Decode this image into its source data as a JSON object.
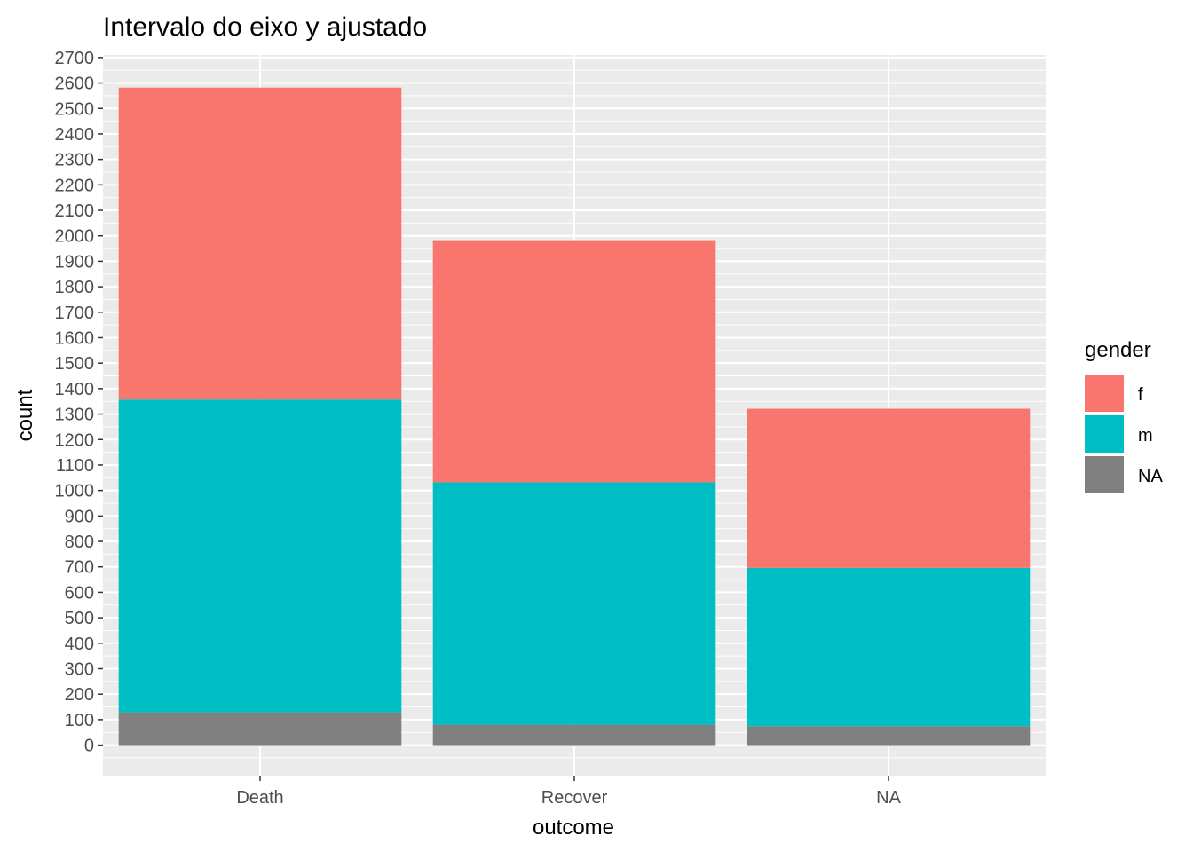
{
  "chart_data": {
    "type": "bar",
    "stacked": true,
    "title": "Intervalo do eixo y ajustado",
    "xlabel": "outcome",
    "ylabel": "count",
    "categories": [
      "Death",
      "Recover",
      "NA"
    ],
    "series": [
      {
        "name": "NA",
        "values": [
          129,
          80,
          74
        ]
      },
      {
        "name": "m",
        "values": [
          1228,
          952,
          622
        ]
      },
      {
        "name": "f",
        "values": [
          1225,
          951,
          625
        ]
      }
    ],
    "y_ticks": [
      0,
      100,
      200,
      300,
      400,
      500,
      600,
      700,
      800,
      900,
      1000,
      1100,
      1200,
      1300,
      1400,
      1500,
      1600,
      1700,
      1800,
      1900,
      2000,
      2100,
      2200,
      2300,
      2400,
      2500,
      2600,
      2700
    ],
    "ylim": [
      -120,
      2710
    ],
    "grid": true,
    "legend": {
      "title": "gender",
      "placement": "right",
      "entries": [
        {
          "label": "f",
          "color": "#F8766D"
        },
        {
          "label": "m",
          "color": "#00BFC4"
        },
        {
          "label": "NA",
          "color": "#808080"
        }
      ]
    },
    "colors": {
      "f": "#F8766D",
      "m": "#00BFC4",
      "NA": "#808080"
    },
    "panel_background": "#EBEBEB",
    "grid_color": "#FFFFFF"
  }
}
